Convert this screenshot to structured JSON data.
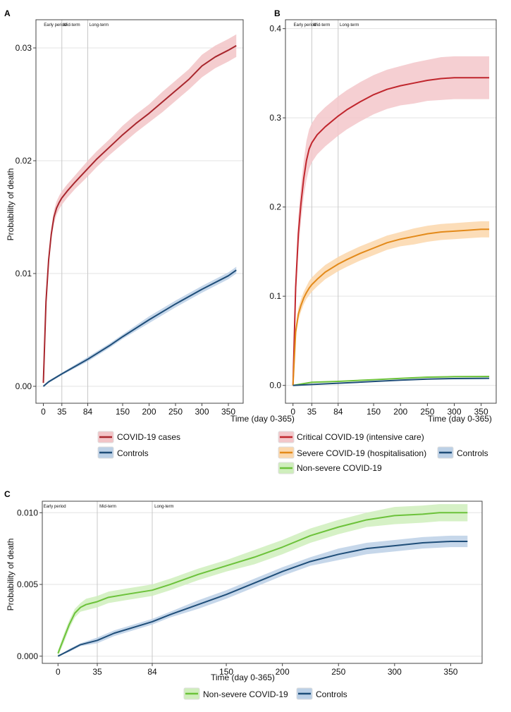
{
  "colors": {
    "covid": "#a8262d",
    "covid_band": "#f2c4c7",
    "critical": "#c0262d",
    "critical_band": "#f3c7ca",
    "severe": "#e38a1a",
    "severe_band": "#fbd7ac",
    "nonsevere": "#6cc23a",
    "nonsevere_band": "#cfeebc",
    "controls": "#1f4e79",
    "controls_band": "#bcd0e6",
    "grid": "#e3e3e3",
    "vline": "#c8c8c8",
    "frame": "#444444"
  },
  "chart_data": [
    {
      "panel": "A",
      "type": "line",
      "title": "",
      "xlabel": "Time (day 0-365)",
      "ylabel": "Probability of death",
      "xlim": [
        -14,
        378
      ],
      "ylim": [
        -0.0015,
        0.0325
      ],
      "x_ticks": [
        0,
        35,
        84,
        150,
        200,
        250,
        300,
        350
      ],
      "y_ticks": [
        0.0,
        0.01,
        0.02,
        0.03
      ],
      "y_tick_labels": [
        "0.00",
        "0.01",
        "0.02",
        "0.03"
      ],
      "period_lines": [
        35,
        84
      ],
      "period_labels": [
        {
          "text": "Early period",
          "x": 1
        },
        {
          "text": "Mid-term",
          "x": 38
        },
        {
          "text": "Long-term",
          "x": 87
        }
      ],
      "series": [
        {
          "name": "COVID-19 cases",
          "color_key": "covid",
          "x": [
            0,
            5,
            10,
            15,
            20,
            25,
            30,
            35,
            45,
            60,
            84,
            100,
            125,
            150,
            175,
            200,
            225,
            250,
            275,
            300,
            325,
            350,
            365
          ],
          "y": [
            0.0003,
            0.0075,
            0.0112,
            0.0135,
            0.015,
            0.0158,
            0.0163,
            0.0167,
            0.0173,
            0.0181,
            0.0193,
            0.0201,
            0.0212,
            0.0223,
            0.0233,
            0.0242,
            0.0252,
            0.0262,
            0.0272,
            0.0284,
            0.0292,
            0.0298,
            0.0302
          ],
          "band": [
            0.0002,
            0.0004,
            0.0005,
            0.0005,
            0.0006,
            0.0006,
            0.0006,
            0.0006,
            0.0006,
            0.0006,
            0.0007,
            0.0007,
            0.0007,
            0.0008,
            0.0008,
            0.0008,
            0.0009,
            0.0009,
            0.0009,
            0.001,
            0.001,
            0.001,
            0.001
          ]
        },
        {
          "name": "Controls",
          "color_key": "controls",
          "x": [
            0,
            10,
            35,
            84,
            125,
            150,
            200,
            250,
            300,
            350,
            365
          ],
          "y": [
            0.0,
            0.0004,
            0.0011,
            0.0024,
            0.0036,
            0.0044,
            0.0059,
            0.0073,
            0.0086,
            0.0098,
            0.0103
          ],
          "band": [
            0.0001,
            0.0001,
            0.0001,
            0.0002,
            0.0002,
            0.0002,
            0.0003,
            0.0003,
            0.0003,
            0.0003,
            0.0003
          ]
        }
      ],
      "legend": [
        "COVID-19 cases",
        "Controls"
      ]
    },
    {
      "panel": "B",
      "type": "line",
      "title": "",
      "xlabel": "Time (day 0-365)",
      "ylabel": "",
      "xlim": [
        -14,
        378
      ],
      "ylim": [
        -0.02,
        0.41
      ],
      "x_ticks": [
        0,
        35,
        84,
        150,
        200,
        250,
        300,
        350
      ],
      "y_ticks": [
        0.0,
        0.1,
        0.2,
        0.3,
        0.4
      ],
      "y_tick_labels": [
        "0.0",
        "0.1",
        "0.2",
        "0.3",
        "0.4"
      ],
      "period_lines": [
        35,
        84
      ],
      "period_labels": [
        {
          "text": "Early period",
          "x": 1
        },
        {
          "text": "Mid-term",
          "x": 38
        },
        {
          "text": "Long-term",
          "x": 87
        }
      ],
      "series": [
        {
          "name": "Critical COVID-19 (intensive care)",
          "color_key": "critical",
          "x": [
            0,
            5,
            10,
            15,
            20,
            25,
            30,
            35,
            45,
            60,
            84,
            100,
            125,
            150,
            175,
            200,
            225,
            250,
            275,
            300,
            325,
            350,
            365
          ],
          "y": [
            0.0,
            0.11,
            0.17,
            0.205,
            0.232,
            0.252,
            0.265,
            0.272,
            0.281,
            0.29,
            0.302,
            0.309,
            0.318,
            0.326,
            0.332,
            0.336,
            0.339,
            0.342,
            0.344,
            0.345,
            0.345,
            0.345,
            0.345
          ],
          "band": [
            0.0,
            0.015,
            0.02,
            0.02,
            0.02,
            0.022,
            0.022,
            0.022,
            0.022,
            0.022,
            0.022,
            0.022,
            0.022,
            0.022,
            0.022,
            0.022,
            0.023,
            0.023,
            0.024,
            0.024,
            0.024,
            0.024,
            0.024
          ]
        },
        {
          "name": "Severe COVID-19 (hospitalisation)",
          "color_key": "severe",
          "x": [
            0,
            5,
            10,
            15,
            20,
            25,
            30,
            35,
            45,
            60,
            84,
            100,
            125,
            150,
            175,
            200,
            225,
            250,
            275,
            300,
            325,
            350,
            365
          ],
          "y": [
            0.0,
            0.06,
            0.08,
            0.09,
            0.098,
            0.104,
            0.109,
            0.113,
            0.119,
            0.127,
            0.136,
            0.141,
            0.148,
            0.154,
            0.16,
            0.164,
            0.167,
            0.17,
            0.172,
            0.173,
            0.174,
            0.175,
            0.175
          ],
          "band": [
            0.0,
            0.006,
            0.007,
            0.007,
            0.007,
            0.007,
            0.008,
            0.008,
            0.008,
            0.008,
            0.008,
            0.008,
            0.008,
            0.008,
            0.008,
            0.008,
            0.009,
            0.009,
            0.009,
            0.009,
            0.009,
            0.009,
            0.009
          ]
        },
        {
          "name": "Non-severe COVID-19",
          "color_key": "nonsevere",
          "x": [
            0,
            20,
            35,
            84,
            150,
            200,
            250,
            300,
            350,
            365
          ],
          "y": [
            0.0,
            0.002,
            0.0035,
            0.0045,
            0.0064,
            0.0079,
            0.0092,
            0.0098,
            0.0099,
            0.01
          ],
          "band": [
            0.0,
            0.0004,
            0.0004,
            0.0005,
            0.0005,
            0.0006,
            0.0007,
            0.0007,
            0.0008,
            0.0008
          ]
        },
        {
          "name": "Controls",
          "color_key": "controls",
          "x": [
            0,
            35,
            84,
            150,
            200,
            250,
            300,
            350,
            365
          ],
          "y": [
            0.0,
            0.001,
            0.0024,
            0.0044,
            0.0059,
            0.0071,
            0.0077,
            0.0079,
            0.008
          ],
          "band": [
            0.0,
            0.0002,
            0.0002,
            0.0003,
            0.0003,
            0.0004,
            0.0004,
            0.0004,
            0.0004
          ]
        }
      ],
      "legend": [
        "Critical COVID-19 (intensive care)",
        "Severe COVID-19 (hospitalisation)",
        "Non-severe COVID-19",
        "Controls"
      ]
    },
    {
      "panel": "C",
      "type": "line",
      "title": "",
      "xlabel": "Time (day 0-365)",
      "ylabel": "Probability of death",
      "xlim": [
        -14,
        378
      ],
      "ylim": [
        -0.0005,
        0.0108
      ],
      "x_ticks": [
        0,
        35,
        84,
        150,
        200,
        250,
        300,
        350
      ],
      "y_ticks": [
        0.0,
        0.005,
        0.01
      ],
      "y_tick_labels": [
        "0.000",
        "0.005",
        "0.010"
      ],
      "period_lines": [
        35,
        84
      ],
      "period_labels": [
        {
          "text": "Early period",
          "x": -13
        },
        {
          "text": "Mid-term",
          "x": 37
        },
        {
          "text": "Long-term",
          "x": 86
        }
      ],
      "series": [
        {
          "name": "Non-severe COVID-19",
          "color_key": "nonsevere",
          "x": [
            0,
            5,
            10,
            15,
            20,
            25,
            30,
            35,
            45,
            60,
            84,
            100,
            125,
            150,
            175,
            200,
            225,
            250,
            275,
            300,
            325,
            340,
            365
          ],
          "y": [
            0.0002,
            0.0012,
            0.0022,
            0.003,
            0.0034,
            0.0036,
            0.0037,
            0.0038,
            0.0041,
            0.0043,
            0.0046,
            0.005,
            0.0057,
            0.0063,
            0.0069,
            0.0076,
            0.0084,
            0.009,
            0.0095,
            0.0098,
            0.0099,
            0.01,
            0.01
          ],
          "band": [
            0.0002,
            0.0003,
            0.0003,
            0.0003,
            0.0003,
            0.0004,
            0.0004,
            0.0004,
            0.0004,
            0.0004,
            0.0004,
            0.0004,
            0.0004,
            0.0004,
            0.0005,
            0.0005,
            0.0005,
            0.0005,
            0.0005,
            0.0006,
            0.0006,
            0.0006,
            0.0006
          ]
        },
        {
          "name": "Controls",
          "color_key": "controls",
          "x": [
            0,
            10,
            20,
            35,
            50,
            84,
            100,
            125,
            150,
            175,
            200,
            225,
            250,
            275,
            300,
            325,
            350,
            365
          ],
          "y": [
            0.0,
            0.0004,
            0.0008,
            0.0011,
            0.0016,
            0.0024,
            0.0029,
            0.0036,
            0.0043,
            0.0051,
            0.0059,
            0.0066,
            0.0071,
            0.0075,
            0.0077,
            0.0079,
            0.008,
            0.008
          ],
          "band": [
            0.0,
            0.0001,
            0.0001,
            0.0002,
            0.0002,
            0.0002,
            0.0002,
            0.0003,
            0.0003,
            0.0003,
            0.0003,
            0.0003,
            0.0004,
            0.0004,
            0.0004,
            0.0004,
            0.0004,
            0.0004
          ]
        }
      ],
      "legend": [
        "Non-severe COVID-19",
        "Controls"
      ]
    }
  ]
}
